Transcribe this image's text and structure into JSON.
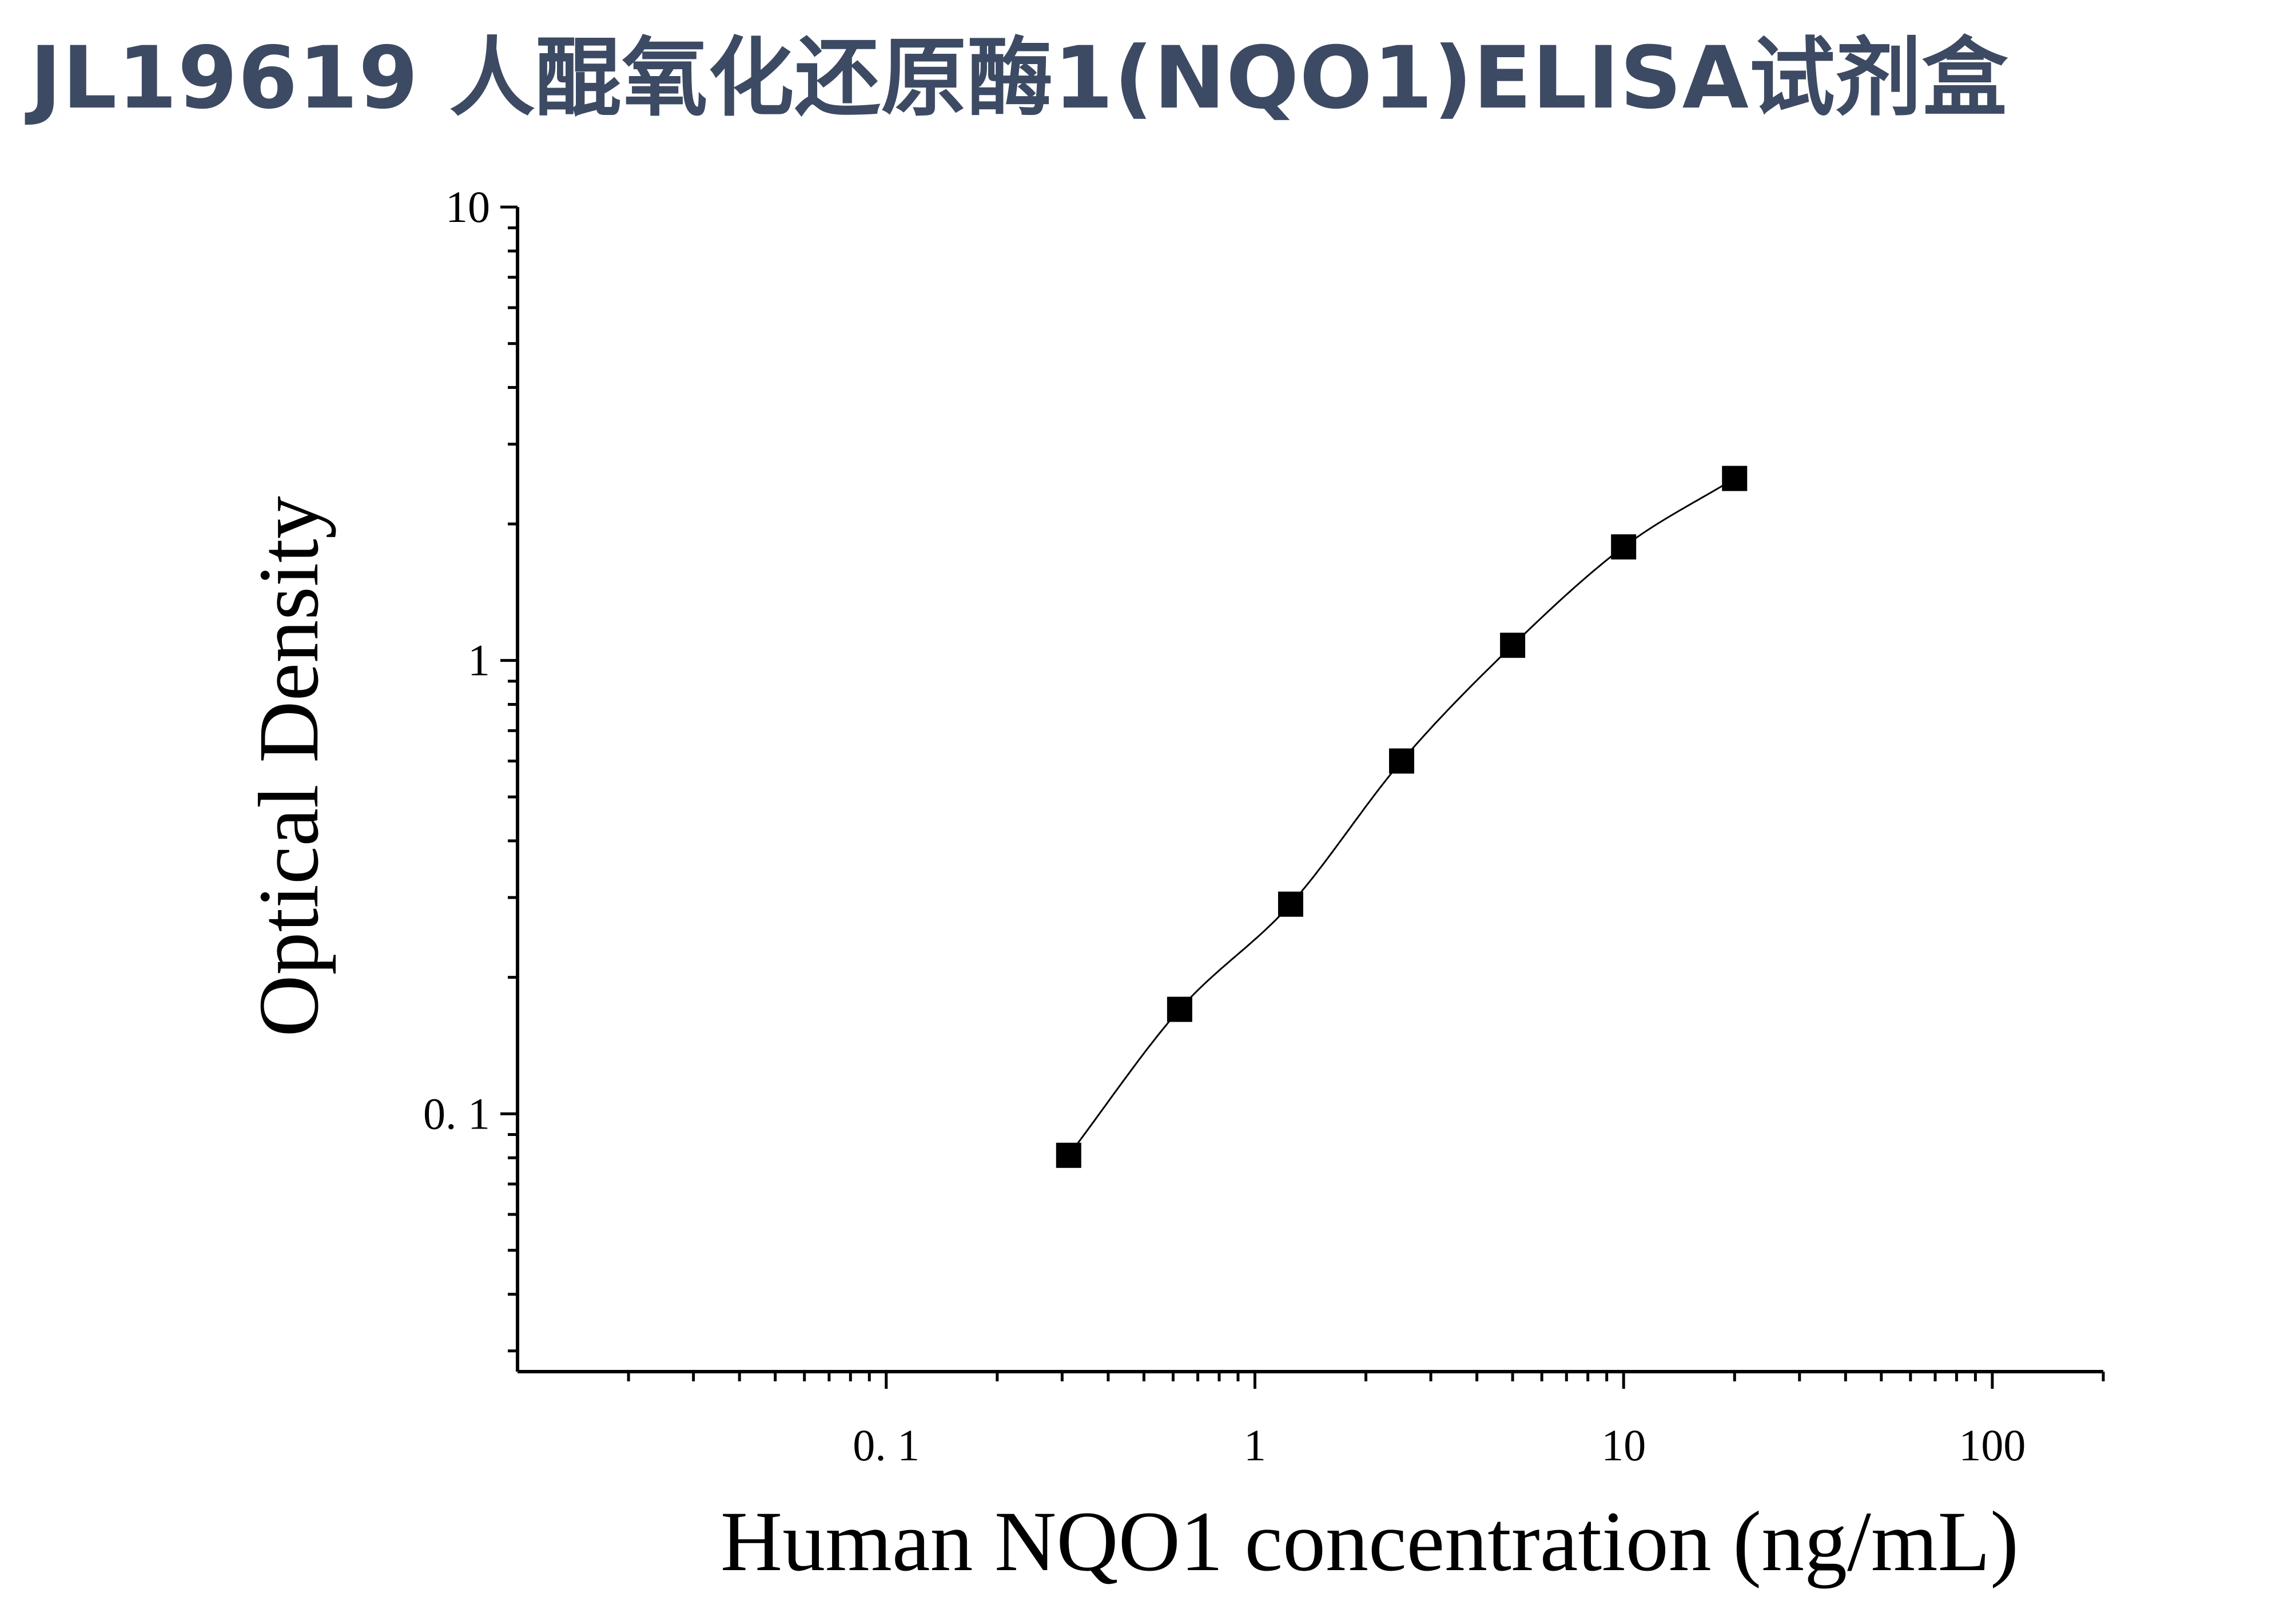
{
  "page": {
    "title": "JL19619 人醌氧化还原酶1(NQO1)ELISA试剂盒"
  },
  "chart_data": {
    "type": "scatter",
    "xlabel": "Human NQO1 concentration (ng/mL)",
    "ylabel": "Optical Density",
    "xscale": "log",
    "yscale": "log",
    "xlim": [
      0.01,
      200
    ],
    "ylim": [
      0.027,
      10
    ],
    "xticks": [
      0.1,
      1,
      10,
      100
    ],
    "xtick_labels": [
      "0. 1",
      "1",
      "10",
      "100"
    ],
    "yticks": [
      0.1,
      1,
      10
    ],
    "ytick_labels": [
      "0. 1",
      "1",
      "10"
    ],
    "grid": false,
    "series": [
      {
        "marker": "square",
        "color": "#000000",
        "fit_line": true,
        "x": [
          0.3125,
          0.625,
          1.25,
          2.5,
          5,
          10,
          20
        ],
        "y": [
          0.081,
          0.17,
          0.29,
          0.6,
          1.08,
          1.78,
          2.52
        ]
      }
    ]
  }
}
